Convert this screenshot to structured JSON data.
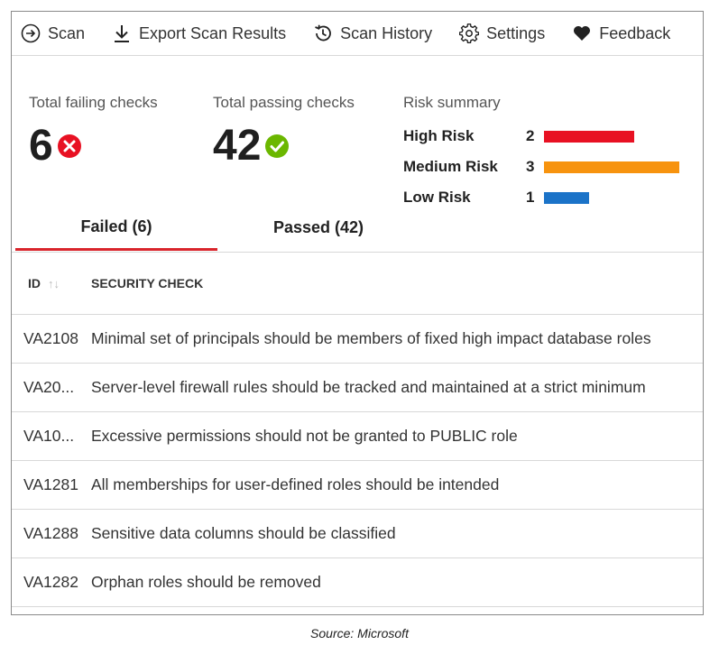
{
  "toolbar": {
    "items": [
      {
        "label": "Scan",
        "icon": "scan-arrow-icon"
      },
      {
        "label": "Export Scan Results",
        "icon": "download-icon"
      },
      {
        "label": "Scan History",
        "icon": "history-icon"
      },
      {
        "label": "Settings",
        "icon": "gear-icon"
      },
      {
        "label": "Feedback",
        "icon": "heart-icon"
      }
    ]
  },
  "summary": {
    "failing_label": "Total failing checks",
    "failing_value": "6",
    "passing_label": "Total passing checks",
    "passing_value": "42"
  },
  "risk": {
    "title": "Risk summary",
    "max": 3,
    "items": [
      {
        "name": "High Risk",
        "count": "2",
        "color": "#e81123"
      },
      {
        "name": "Medium Risk",
        "count": "3",
        "color": "#f7930e"
      },
      {
        "name": "Low Risk",
        "count": "1",
        "color": "#1b73c8"
      }
    ]
  },
  "tabs": [
    {
      "label": "Failed (6)",
      "active": true
    },
    {
      "label": "Passed (42)",
      "active": false
    }
  ],
  "table": {
    "columns": [
      "ID",
      "SECURITY CHECK"
    ],
    "rows": [
      {
        "id": "VA2108",
        "check": "Minimal set of principals should be members of fixed high impact database roles"
      },
      {
        "id": "VA20...",
        "check": "Server-level firewall rules should be tracked and maintained at a strict minimum"
      },
      {
        "id": "VA10...",
        "check": "Excessive permissions should not be granted to PUBLIC role"
      },
      {
        "id": "VA1281",
        "check": "All memberships for user-defined roles should be intended"
      },
      {
        "id": "VA1288",
        "check": "Sensitive data columns should be classified"
      },
      {
        "id": "VA1282",
        "check": "Orphan roles should be removed"
      }
    ]
  },
  "colors": {
    "fail": "#e81123",
    "pass": "#6bb700",
    "tab_active": "#d9242b"
  },
  "source": "Source: Microsoft"
}
